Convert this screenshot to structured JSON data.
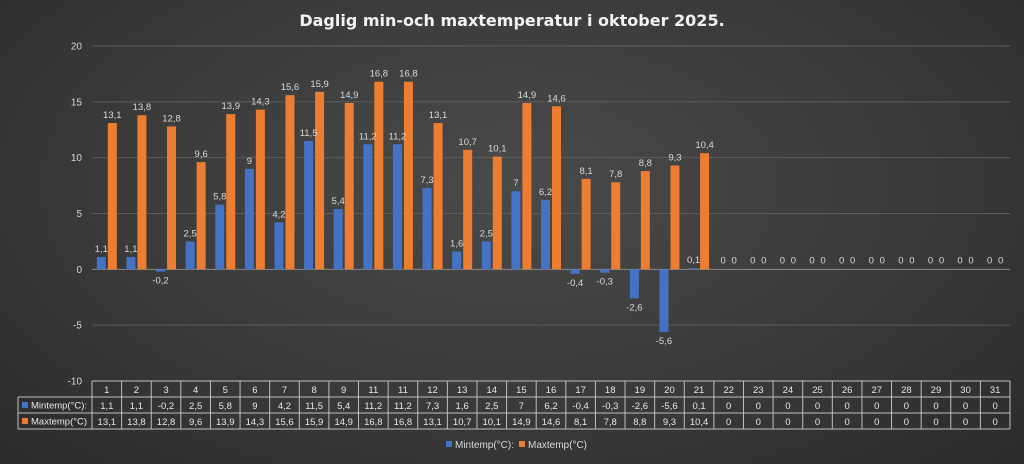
{
  "chart_data": {
    "type": "bar",
    "title": "Daglig min-och maxtemperatur i oktober 2025.",
    "categories": [
      "1",
      "2",
      "3",
      "4",
      "5",
      "6",
      "7",
      "8",
      "9",
      "11",
      "11",
      "12",
      "13",
      "14",
      "15",
      "16",
      "17",
      "18",
      "19",
      "20",
      "21",
      "22",
      "23",
      "24",
      "25",
      "26",
      "27",
      "28",
      "29",
      "30",
      "31"
    ],
    "series": [
      {
        "name": "Mintemp(°C):",
        "color": "#4472c4",
        "values": [
          1.1,
          1.1,
          -0.2,
          2.5,
          5.8,
          9,
          4.2,
          11.5,
          5.4,
          11.2,
          11.2,
          7.3,
          1.6,
          2.5,
          7,
          6.2,
          -0.4,
          -0.3,
          -2.6,
          -5.6,
          0.1,
          0,
          0,
          0,
          0,
          0,
          0,
          0,
          0,
          0,
          0
        ],
        "labels": [
          "1,1",
          "1,1",
          "-0,2",
          "2,5",
          "5,8",
          "9",
          "4,2",
          "11,5",
          "5,4",
          "11,2",
          "11,2",
          "7,3",
          "1,6",
          "2,5",
          "7",
          "6,2",
          "-0,4",
          "-0,3",
          "-2,6",
          "-5,6",
          "0,1",
          "0",
          "0",
          "0",
          "0",
          "0",
          "0",
          "0",
          "0",
          "0",
          "0"
        ]
      },
      {
        "name": "Maxtemp(°C)",
        "color": "#ed7d31",
        "values": [
          13.1,
          13.8,
          12.8,
          9.6,
          13.9,
          14.3,
          15.6,
          15.9,
          14.9,
          16.8,
          16.8,
          13.1,
          10.7,
          10.1,
          14.9,
          14.6,
          8.1,
          7.8,
          8.8,
          9.3,
          10.4,
          0,
          0,
          0,
          0,
          0,
          0,
          0,
          0,
          0,
          0
        ],
        "labels": [
          "13,1",
          "13,8",
          "12,8",
          "9,6",
          "13,9",
          "14,3",
          "15,6",
          "15,9",
          "14,9",
          "16,8",
          "16,8",
          "13,1",
          "10,7",
          "10,1",
          "14,9",
          "14,6",
          "8,1",
          "7,8",
          "8,8",
          "9,3",
          "10,4",
          "0",
          "0",
          "0",
          "0",
          "0",
          "0",
          "0",
          "0",
          "0",
          "0"
        ]
      }
    ],
    "yticks": [
      "20",
      "15",
      "10",
      "5",
      "0",
      "-5",
      "-10"
    ],
    "ylim": [
      -10,
      20
    ],
    "grid": true,
    "legend_position": "bottom",
    "data_table": true
  }
}
